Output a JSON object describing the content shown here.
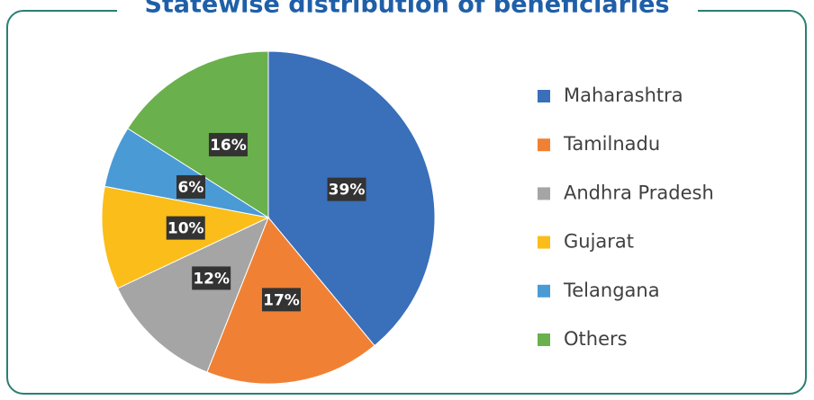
{
  "chart_data": {
    "type": "pie",
    "title": "Statewise distribution of beneficiaries",
    "categories": [
      "Maharashtra",
      "Tamilnadu",
      "Andhra Pradesh",
      "Gujarat",
      "Telangana",
      "Others"
    ],
    "values": [
      39,
      17,
      12,
      10,
      6,
      16
    ],
    "value_labels": [
      "39%",
      "17%",
      "12%",
      "10%",
      "6%",
      "16%"
    ],
    "colors": [
      "#3a6fba",
      "#f08134",
      "#a5a5a5",
      "#fbbd19",
      "#4a9ad6",
      "#6ab04c"
    ],
    "legend": "right"
  }
}
